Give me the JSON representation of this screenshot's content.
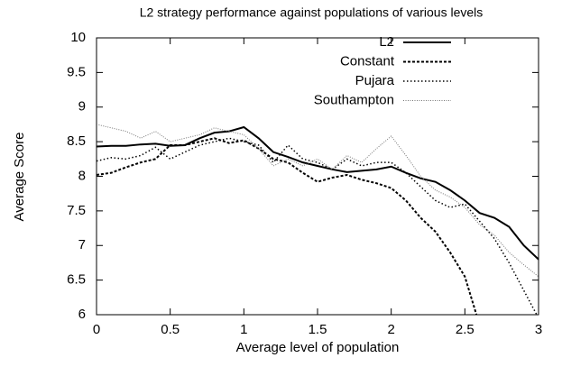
{
  "chart_data": {
    "type": "line",
    "title": "L2 strategy performance against populations of various levels",
    "x_label": "Average level of population",
    "y_label": "Average Score",
    "x": [
      0,
      0.1,
      0.2,
      0.3,
      0.4,
      0.5,
      0.6,
      0.7,
      0.8,
      0.9,
      1.0,
      1.1,
      1.2,
      1.3,
      1.4,
      1.5,
      1.6,
      1.7,
      1.8,
      1.9,
      2.0,
      2.1,
      2.2,
      2.3,
      2.4,
      2.5,
      2.6,
      2.7,
      2.8,
      2.9,
      3.0
    ],
    "series": [
      {
        "name": "L2",
        "color": "#000000",
        "values": [
          8.43,
          8.44,
          8.44,
          8.46,
          8.47,
          8.44,
          8.45,
          8.55,
          8.63,
          8.65,
          8.71,
          8.55,
          8.35,
          8.28,
          8.2,
          8.15,
          8.1,
          8.06,
          8.08,
          8.1,
          8.14,
          8.05,
          7.97,
          7.92,
          7.8,
          7.65,
          7.47,
          7.4,
          7.27,
          7.0,
          6.8
        ]
      },
      {
        "name": "Constant",
        "color": "#000000",
        "values": [
          8.02,
          8.05,
          8.13,
          8.2,
          8.25,
          8.45,
          8.45,
          8.5,
          8.55,
          8.48,
          8.52,
          8.4,
          8.25,
          8.2,
          8.05,
          7.92,
          7.98,
          8.02,
          7.95,
          7.9,
          7.83,
          7.65,
          7.4,
          7.2,
          6.9,
          6.55,
          5.85,
          null,
          null,
          null,
          null
        ]
      },
      {
        "name": "Pujara",
        "color": "#000000",
        "values": [
          8.22,
          8.27,
          8.25,
          8.3,
          8.42,
          8.25,
          8.35,
          8.45,
          8.5,
          8.55,
          8.5,
          8.45,
          8.2,
          8.45,
          8.25,
          8.2,
          8.1,
          8.25,
          8.15,
          8.2,
          8.2,
          8.05,
          7.85,
          7.65,
          7.55,
          7.6,
          7.35,
          7.1,
          6.75,
          6.35,
          5.95
        ]
      },
      {
        "name": "Southampton",
        "color": "#777777",
        "values": [
          8.75,
          8.7,
          8.65,
          8.55,
          8.65,
          8.5,
          8.55,
          8.6,
          8.7,
          8.65,
          8.6,
          8.4,
          8.15,
          8.25,
          8.15,
          8.25,
          8.1,
          8.3,
          8.2,
          8.4,
          8.58,
          8.3,
          8.0,
          7.8,
          7.7,
          7.55,
          7.3,
          7.15,
          6.9,
          6.72,
          6.55
        ]
      }
    ],
    "xlim": [
      0,
      3
    ],
    "xticks": [
      0,
      0.5,
      1,
      1.5,
      2,
      2.5,
      3
    ],
    "ylim": [
      6,
      10
    ],
    "yticks": [
      6,
      6.5,
      7,
      7.5,
      8,
      8.5,
      9,
      9.5,
      10
    ],
    "grid": false,
    "legend": "top-right"
  }
}
